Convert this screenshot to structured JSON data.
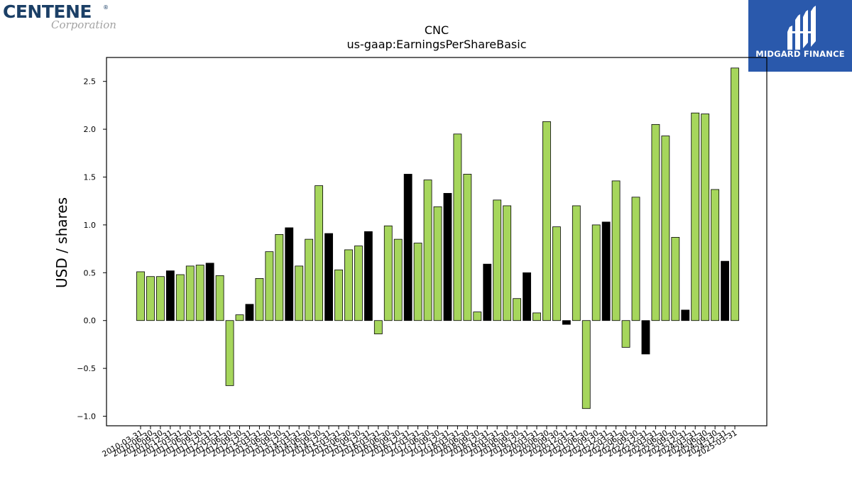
{
  "branding": {
    "left_logo_main": "CENTENE",
    "left_logo_reg": "®",
    "left_logo_sub": "Corporation",
    "right_logo_text": "MIDGARD FINANCE",
    "right_logo_bg": "#2a59ac",
    "left_logo_color": "#1b3f66"
  },
  "chart_data": {
    "type": "bar",
    "title": "CNC",
    "subtitle": "us-gaap:EarningsPerShareBasic",
    "xlabel": "",
    "ylabel": "USD / shares",
    "ylim": [
      -1.1,
      2.75
    ],
    "yticks": [
      -1.0,
      -0.5,
      0.0,
      0.5,
      1.0,
      1.5,
      2.0,
      2.5
    ],
    "ytick_labels": [
      "−1.0",
      "−0.5",
      "0.0",
      "0.5",
      "1.0",
      "1.5",
      "2.0",
      "2.5"
    ],
    "grid": false,
    "colors": {
      "quarterly": "#a6d65c",
      "annual": "#000000",
      "edge": "#000000"
    },
    "categories": [
      "2010-03-31",
      "2010-06-30",
      "2010-09-30",
      "2010-12-31",
      "2011-03-31",
      "2011-06-30",
      "2011-09-30",
      "2011-12-31",
      "2012-03-31",
      "2012-06-30",
      "2012-09-30",
      "2012-12-31",
      "2013-03-31",
      "2013-06-30",
      "2013-09-30",
      "2013-12-31",
      "2014-03-31",
      "2014-06-30",
      "2014-09-30",
      "2014-12-31",
      "2015-03-31",
      "2015-06-30",
      "2015-09-30",
      "2015-12-31",
      "2016-03-31",
      "2016-06-30",
      "2016-09-30",
      "2016-12-31",
      "2017-03-31",
      "2017-06-30",
      "2017-09-30",
      "2017-12-31",
      "2018-03-31",
      "2018-06-30",
      "2018-09-30",
      "2018-12-31",
      "2019-03-31",
      "2019-06-30",
      "2019-09-30",
      "2019-12-31",
      "2020-03-31",
      "2020-06-30",
      "2020-09-30",
      "2020-12-31",
      "2021-03-31",
      "2021-06-30",
      "2021-09-30",
      "2021-12-31",
      "2022-03-31",
      "2022-06-30",
      "2022-09-30",
      "2022-12-31",
      "2023-03-31",
      "2023-06-30",
      "2023-09-30",
      "2023-12-31",
      "2024-03-31",
      "2024-06-30",
      "2024-09-30",
      "2024-12-31",
      "2025-03-31"
    ],
    "values": [
      0.51,
      0.46,
      0.46,
      0.52,
      0.48,
      0.57,
      0.58,
      0.6,
      0.47,
      -0.68,
      0.06,
      0.17,
      0.44,
      0.72,
      0.9,
      0.97,
      0.57,
      0.85,
      1.41,
      0.91,
      0.53,
      0.74,
      0.78,
      0.93,
      -0.14,
      0.99,
      0.85,
      1.53,
      0.81,
      1.47,
      1.19,
      1.33,
      1.95,
      1.53,
      0.09,
      0.59,
      1.26,
      1.2,
      0.23,
      0.5,
      0.08,
      2.08,
      0.98,
      -0.04,
      1.2,
      -0.92,
      1.0,
      1.03,
      1.46,
      -0.28,
      1.29,
      -0.35,
      2.05,
      1.93,
      0.87,
      0.11,
      2.17,
      2.16,
      1.37,
      0.62,
      2.64
    ],
    "annual_flags": [
      false,
      false,
      false,
      true,
      false,
      false,
      false,
      true,
      false,
      false,
      false,
      true,
      false,
      false,
      false,
      true,
      false,
      false,
      false,
      true,
      false,
      false,
      false,
      true,
      false,
      false,
      false,
      true,
      false,
      false,
      false,
      true,
      false,
      false,
      false,
      true,
      false,
      false,
      false,
      true,
      false,
      false,
      false,
      true,
      false,
      false,
      false,
      true,
      false,
      false,
      false,
      true,
      false,
      false,
      false,
      true,
      false,
      false,
      false,
      true,
      false
    ]
  }
}
